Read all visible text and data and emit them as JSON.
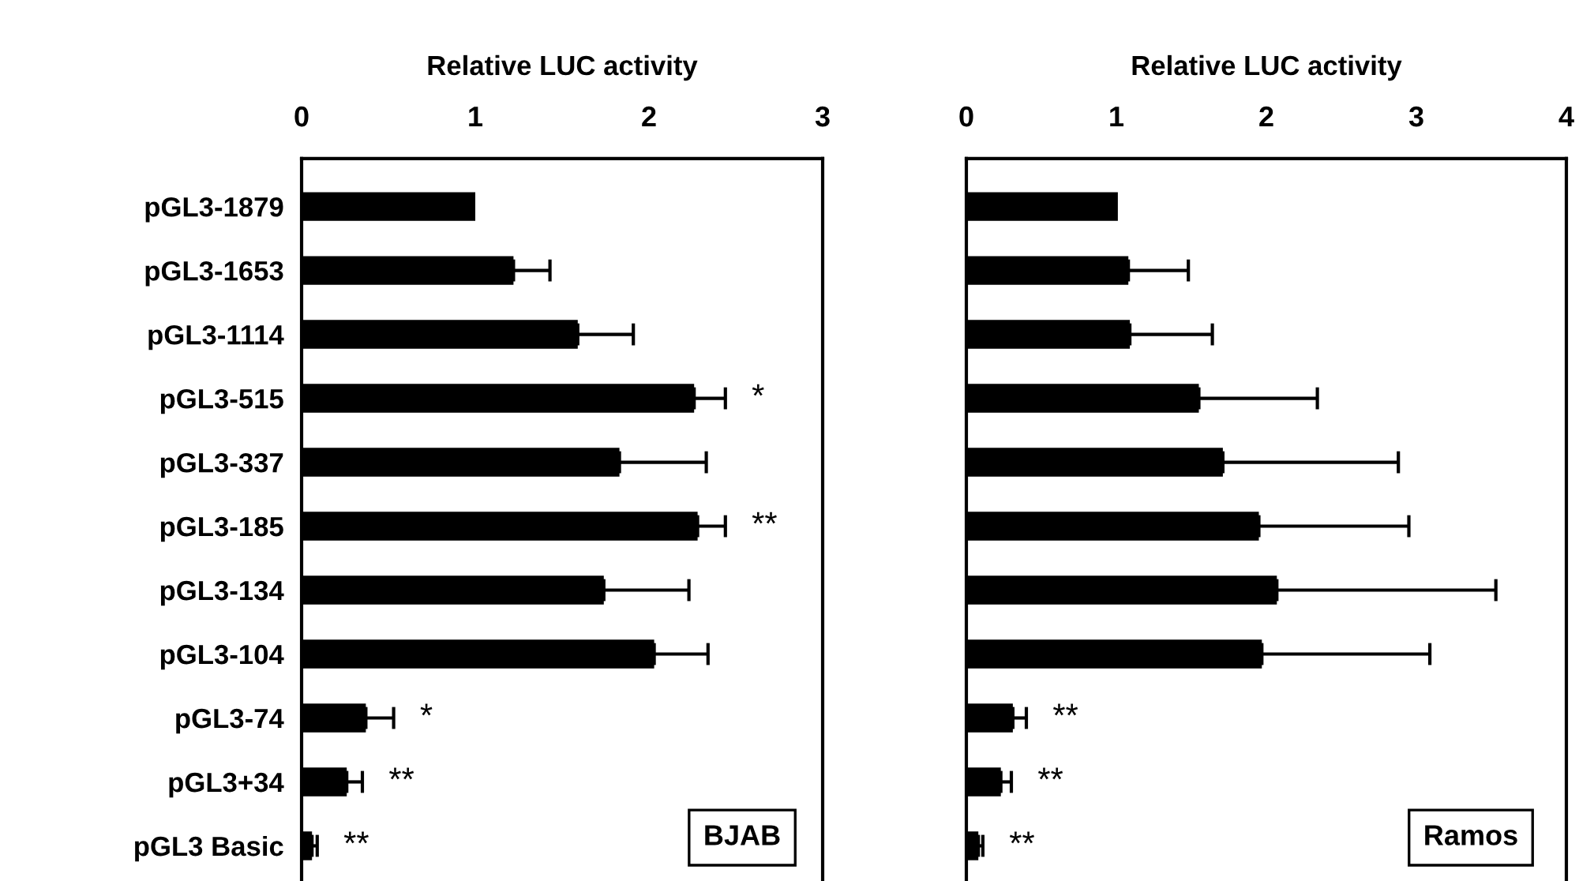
{
  "chart_data": [
    {
      "type": "bar",
      "orientation": "horizontal",
      "xlabel": "Relative LUC activity",
      "categories": [
        "pGL3-1879",
        "pGL3-1653",
        "pGL3-1114",
        "pGL3-515",
        "pGL3-337",
        "pGL3-185",
        "pGL3-134",
        "pGL3-104",
        "pGL3-74",
        "pGL3+34",
        "pGL3 Basic"
      ],
      "values": [
        1.0,
        1.22,
        1.59,
        2.26,
        1.83,
        2.28,
        1.74,
        2.03,
        0.37,
        0.26,
        0.06
      ],
      "errors": [
        null,
        [
          1.22,
          1.43
        ],
        [
          1.59,
          1.91
        ],
        [
          2.26,
          2.44
        ],
        [
          1.83,
          2.33
        ],
        [
          2.28,
          2.44
        ],
        [
          1.74,
          2.23
        ],
        [
          2.03,
          2.34
        ],
        [
          0.37,
          0.53
        ],
        [
          0.26,
          0.35
        ],
        [
          0.06,
          0.09
        ]
      ],
      "value_labels": [
        null,
        null,
        null,
        "*",
        null,
        "**",
        null,
        null,
        "*",
        "**",
        "**"
      ],
      "color": "#000000",
      "xlim": [
        0,
        3
      ],
      "xticks": [
        0,
        1,
        2,
        3
      ],
      "grid": false,
      "annotations": [
        "BJAB"
      ]
    },
    {
      "type": "bar",
      "orientation": "horizontal",
      "xlabel": "Relative LUC activity",
      "categories": [
        null,
        null,
        null,
        null,
        null,
        null,
        null,
        null,
        null,
        null,
        null
      ],
      "values": [
        1.01,
        1.08,
        1.09,
        1.55,
        1.71,
        1.95,
        2.07,
        1.97,
        0.31,
        0.23,
        0.08
      ],
      "errors": [
        null,
        [
          1.08,
          1.48
        ],
        [
          1.09,
          1.64
        ],
        [
          1.55,
          2.34
        ],
        [
          1.71,
          2.88
        ],
        [
          1.95,
          2.95
        ],
        [
          2.07,
          3.53
        ],
        [
          1.97,
          3.09
        ],
        [
          0.31,
          0.4
        ],
        [
          0.23,
          0.3
        ],
        [
          0.08,
          0.11
        ]
      ],
      "value_labels": [
        null,
        null,
        null,
        null,
        null,
        null,
        null,
        null,
        "**",
        "**",
        "**"
      ],
      "color": "#000000",
      "xlim": [
        0,
        4
      ],
      "xticks": [
        0,
        1,
        2,
        3,
        4
      ],
      "grid": false,
      "tick_labels": "x",
      "annotations": [
        "Ramos"
      ]
    }
  ]
}
